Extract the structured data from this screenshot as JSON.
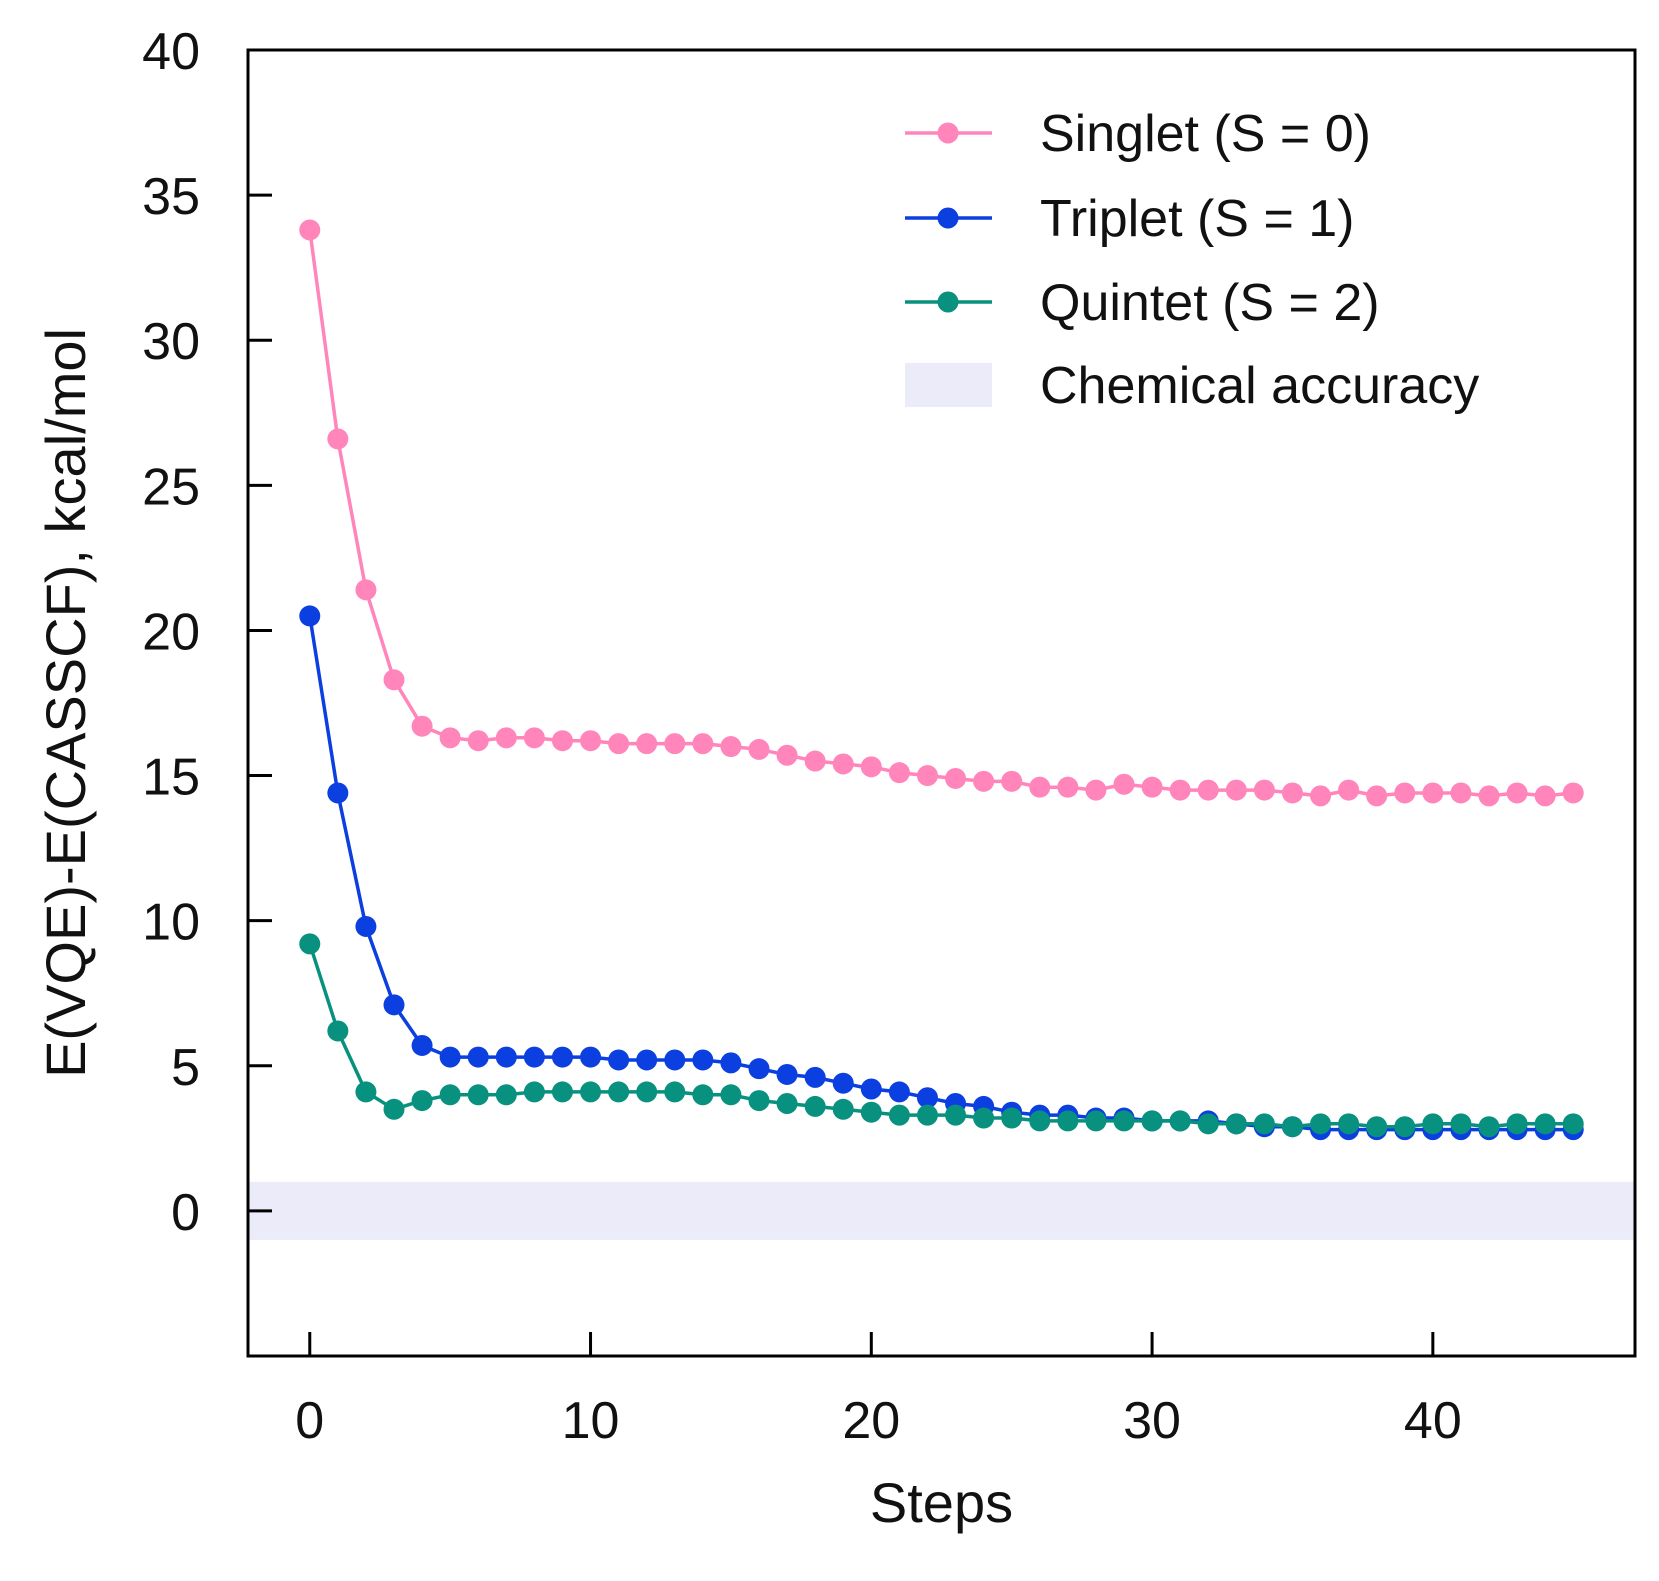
{
  "chart_data": {
    "type": "line",
    "title": "",
    "xlabel": "Steps",
    "ylabel": "E(VQE)-E(CASSCF), kcal/mol",
    "xlim": [
      -2.2,
      47.2
    ],
    "ylim": [
      -5,
      40
    ],
    "xticks": [
      0,
      10,
      20,
      30,
      40
    ],
    "xtick_labels": [
      "0",
      "10",
      "20",
      "30",
      "40"
    ],
    "yticks": [
      0,
      5,
      10,
      15,
      20,
      25,
      30,
      35,
      40
    ],
    "ytick_labels": [
      "0",
      "5",
      "10",
      "15",
      "20",
      "25",
      "30",
      "35",
      "40"
    ],
    "grid": false,
    "legend_position": "top-right",
    "band": {
      "name": "Chemical accuracy",
      "y_from": -1,
      "y_to": 1,
      "color": "#ebebfa"
    },
    "x": [
      0,
      1,
      2,
      3,
      4,
      5,
      6,
      7,
      8,
      9,
      10,
      11,
      12,
      13,
      14,
      15,
      16,
      17,
      18,
      19,
      20,
      21,
      22,
      23,
      24,
      25,
      26,
      27,
      28,
      29,
      30,
      31,
      32,
      33,
      34,
      35,
      36,
      37,
      38,
      39,
      40,
      41,
      42,
      43,
      44,
      45
    ],
    "series": [
      {
        "name": "Singlet  (S = 0)",
        "color": "#ff85bb",
        "values": [
          33.8,
          26.6,
          21.4,
          18.3,
          16.7,
          16.3,
          16.2,
          16.3,
          16.3,
          16.2,
          16.2,
          16.1,
          16.1,
          16.1,
          16.1,
          16.0,
          15.9,
          15.7,
          15.5,
          15.4,
          15.3,
          15.1,
          15.0,
          14.9,
          14.8,
          14.8,
          14.6,
          14.6,
          14.5,
          14.7,
          14.6,
          14.5,
          14.5,
          14.5,
          14.5,
          14.4,
          14.3,
          14.5,
          14.3,
          14.4,
          14.4,
          14.4,
          14.3,
          14.4,
          14.3,
          14.4
        ]
      },
      {
        "name": "Triplet   (S = 1)",
        "color": "#0b3fe0",
        "values": [
          20.5,
          14.4,
          9.8,
          7.1,
          5.7,
          5.3,
          5.3,
          5.3,
          5.3,
          5.3,
          5.3,
          5.2,
          5.2,
          5.2,
          5.2,
          5.1,
          4.9,
          4.7,
          4.6,
          4.4,
          4.2,
          4.1,
          3.9,
          3.7,
          3.6,
          3.4,
          3.3,
          3.3,
          3.2,
          3.2,
          3.1,
          3.1,
          3.1,
          3.0,
          2.9,
          2.9,
          2.8,
          2.8,
          2.8,
          2.8,
          2.8,
          2.8,
          2.8,
          2.8,
          2.8,
          2.8
        ]
      },
      {
        "name": "Quintet (S = 2)",
        "color": "#09917f",
        "values": [
          9.2,
          6.2,
          4.1,
          3.5,
          3.8,
          4.0,
          4.0,
          4.0,
          4.1,
          4.1,
          4.1,
          4.1,
          4.1,
          4.1,
          4.0,
          4.0,
          3.8,
          3.7,
          3.6,
          3.5,
          3.4,
          3.3,
          3.3,
          3.3,
          3.2,
          3.2,
          3.1,
          3.1,
          3.1,
          3.1,
          3.1,
          3.1,
          3.0,
          3.0,
          3.0,
          2.9,
          3.0,
          3.0,
          2.9,
          2.9,
          3.0,
          3.0,
          2.9,
          3.0,
          3.0,
          3.0
        ]
      }
    ]
  }
}
